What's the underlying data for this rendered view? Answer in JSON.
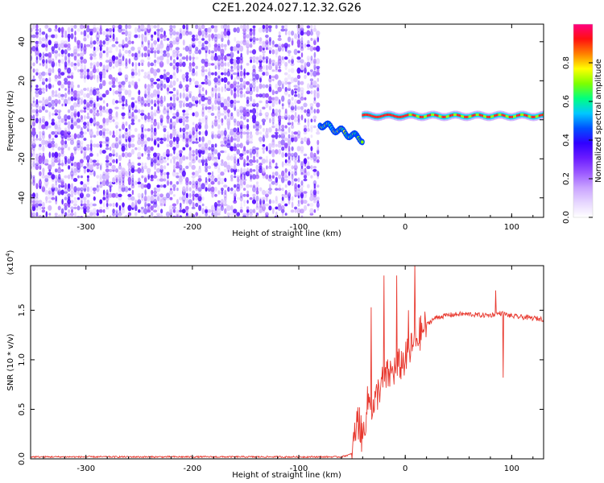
{
  "figure": {
    "title": "C2E1.2024.027.12.32.G26"
  },
  "colors": {
    "signal_line": "#e8392f",
    "axis": "#000000",
    "background": "#ffffff",
    "colormap": [
      "#ffffff",
      "#e6d6ff",
      "#c9a3ff",
      "#9b59ff",
      "#6a1bff",
      "#3000ff",
      "#0050ff",
      "#00c8ff",
      "#00ff80",
      "#7dff00",
      "#ffff00",
      "#ff8000",
      "#ff1010",
      "#ff0080"
    ]
  },
  "chart_data": [
    {
      "type": "heatmap",
      "title": "C2E1.2024.027.12.32.G26",
      "xlabel": "Height of straight line (km)",
      "ylabel": "Frequency (Hz)",
      "xlim": [
        -352,
        130
      ],
      "ylim": [
        -50,
        49
      ],
      "xticks": [
        -300,
        -200,
        -100,
        0,
        100
      ],
      "yticks": [
        -40,
        -20,
        0,
        20,
        40
      ],
      "xtick_labels": [
        "-300",
        "-200",
        "-100",
        "0",
        "100"
      ],
      "ytick_labels": [
        "-40",
        "-20",
        "0",
        "20",
        "40"
      ],
      "grid": false,
      "colorbar": {
        "label": "Normalized spectral amplitude",
        "range": [
          0,
          1
        ],
        "ticks": [
          0.0,
          0.2,
          0.4,
          0.6,
          0.8
        ],
        "tick_labels": [
          "0.0",
          "0.2",
          "0.4",
          "0.6",
          "0.8"
        ]
      },
      "description_regions": [
        {
          "x_range": [
            -352,
            -80
          ],
          "freq_range": [
            -50,
            49
          ],
          "amplitude_range": [
            0.0,
            0.15
          ],
          "pattern": "broadband noise"
        },
        {
          "x_range": [
            -80,
            -40
          ],
          "freq_center_start": -2,
          "freq_center_end": -10,
          "amplitude_range": [
            0.2,
            0.9
          ],
          "pattern": "descending tone"
        },
        {
          "x_range": [
            -40,
            130
          ],
          "freq_center": 2,
          "amplitude_range": [
            0.6,
            1.0
          ],
          "pattern": "steady tone"
        }
      ]
    },
    {
      "type": "line",
      "xlabel": "Height of straight line (km)",
      "ylabel": "SNR (10 * v/v)",
      "yscale_label": "(x10",
      "yscale_exp": "4",
      "yscale_close": ")",
      "xlim": [
        -352,
        130
      ],
      "ylim": [
        0,
        1.95
      ],
      "xticks": [
        -300,
        -200,
        -100,
        0,
        100
      ],
      "yticks": [
        0.0,
        0.5,
        1.0,
        1.5
      ],
      "xtick_labels": [
        "-300",
        "-200",
        "-100",
        "0",
        "100"
      ],
      "ytick_labels": [
        "0.0",
        "0.5",
        "1.0",
        "1.5"
      ],
      "grid": false,
      "series": [
        {
          "x": [
            -352,
            -330,
            -300,
            -270,
            -240,
            -210,
            -180,
            -150,
            -120,
            -100,
            -80,
            -60,
            -50,
            -45,
            -40,
            -35,
            -30,
            -25,
            -20,
            -15,
            -10,
            -5,
            0,
            5,
            10,
            15,
            20,
            25,
            30,
            40,
            50,
            60,
            70,
            80,
            90,
            100,
            110,
            120,
            130
          ],
          "y": [
            0.02,
            0.02,
            0.02,
            0.02,
            0.02,
            0.02,
            0.02,
            0.02,
            0.02,
            0.02,
            0.02,
            0.02,
            0.05,
            0.4,
            0.2,
            0.6,
            0.5,
            0.7,
            0.8,
            0.85,
            0.9,
            0.95,
            1.0,
            1.1,
            1.2,
            1.28,
            1.35,
            1.4,
            1.43,
            1.45,
            1.46,
            1.46,
            1.45,
            1.45,
            1.47,
            1.44,
            1.43,
            1.42,
            1.41
          ],
          "spikes": [
            {
              "x": -43,
              "y": 0.52
            },
            {
              "x": -32,
              "y": 1.53
            },
            {
              "x": -20,
              "y": 1.85
            },
            {
              "x": -8,
              "y": 1.85
            },
            {
              "x": 3,
              "y": 1.5
            },
            {
              "x": 9,
              "y": 1.98
            },
            {
              "x": 85,
              "y": 1.7
            },
            {
              "x": 92,
              "y": 1.85
            },
            {
              "x": 92,
              "y": 0.82
            }
          ]
        }
      ]
    }
  ]
}
